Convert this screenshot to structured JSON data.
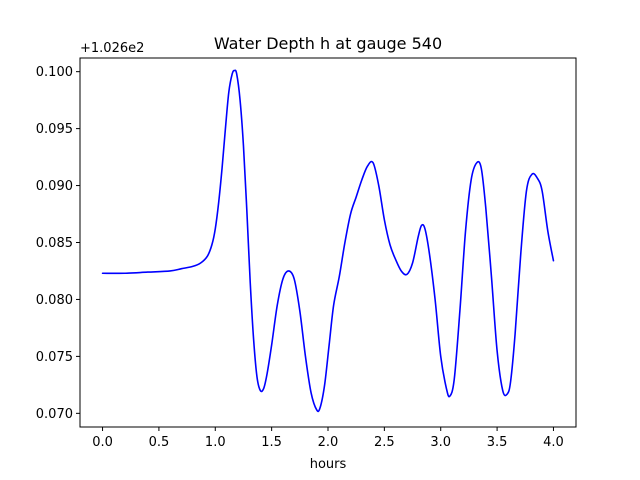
{
  "chart_data": {
    "type": "line",
    "title": "Water Depth h at gauge 540",
    "xlabel": "hours",
    "ylabel": "",
    "y_offset_label": "+1.026e2",
    "xlim": [
      -0.2,
      4.2
    ],
    "ylim": [
      0.0688,
      0.1012
    ],
    "x_ticks": [
      0.0,
      0.5,
      1.0,
      1.5,
      2.0,
      2.5,
      3.0,
      3.5,
      4.0
    ],
    "x_tick_labels": [
      "0.0",
      "0.5",
      "1.0",
      "1.5",
      "2.0",
      "2.5",
      "3.0",
      "3.5",
      "4.0"
    ],
    "y_ticks": [
      0.07,
      0.075,
      0.08,
      0.085,
      0.09,
      0.095,
      0.1
    ],
    "y_tick_labels": [
      "0.070",
      "0.075",
      "0.080",
      "0.085",
      "0.090",
      "0.095",
      "0.100"
    ],
    "grid": false,
    "series": [
      {
        "color": "#0000ff",
        "x": [
          0.0,
          0.2,
          0.4,
          0.6,
          0.7,
          0.8,
          0.87,
          0.93,
          0.97,
          1.0,
          1.03,
          1.06,
          1.09,
          1.12,
          1.15,
          1.17,
          1.19,
          1.22,
          1.25,
          1.28,
          1.31,
          1.34,
          1.37,
          1.4,
          1.43,
          1.46,
          1.5,
          1.55,
          1.6,
          1.65,
          1.7,
          1.75,
          1.8,
          1.85,
          1.9,
          1.93,
          1.97,
          2.01,
          2.05,
          2.1,
          2.15,
          2.2,
          2.25,
          2.3,
          2.35,
          2.4,
          2.45,
          2.5,
          2.55,
          2.6,
          2.65,
          2.7,
          2.75,
          2.8,
          2.83,
          2.86,
          2.9,
          2.95,
          3.0,
          3.05,
          3.08,
          3.12,
          3.17,
          3.22,
          3.27,
          3.32,
          3.36,
          3.4,
          3.45,
          3.5,
          3.55,
          3.59,
          3.62,
          3.66,
          3.71,
          3.76,
          3.81,
          3.86,
          3.9,
          3.95,
          4.0
        ],
        "y": [
          0.0823,
          0.0823,
          0.0824,
          0.0825,
          0.0827,
          0.0829,
          0.0832,
          0.0838,
          0.0848,
          0.0862,
          0.0885,
          0.0915,
          0.095,
          0.0982,
          0.0998,
          0.1001,
          0.0998,
          0.0975,
          0.0935,
          0.0878,
          0.0815,
          0.0765,
          0.0732,
          0.072,
          0.0722,
          0.0735,
          0.076,
          0.0795,
          0.0818,
          0.0825,
          0.0818,
          0.079,
          0.075,
          0.0718,
          0.0703,
          0.0705,
          0.0725,
          0.076,
          0.0795,
          0.082,
          0.085,
          0.0875,
          0.089,
          0.0905,
          0.0917,
          0.092,
          0.09,
          0.087,
          0.0848,
          0.0835,
          0.0825,
          0.0822,
          0.0832,
          0.0855,
          0.0865,
          0.0862,
          0.084,
          0.08,
          0.075,
          0.0722,
          0.0715,
          0.073,
          0.079,
          0.086,
          0.0905,
          0.092,
          0.0915,
          0.088,
          0.082,
          0.0755,
          0.072,
          0.0717,
          0.0728,
          0.077,
          0.084,
          0.0895,
          0.091,
          0.0906,
          0.0895,
          0.086,
          0.0834
        ]
      }
    ]
  }
}
